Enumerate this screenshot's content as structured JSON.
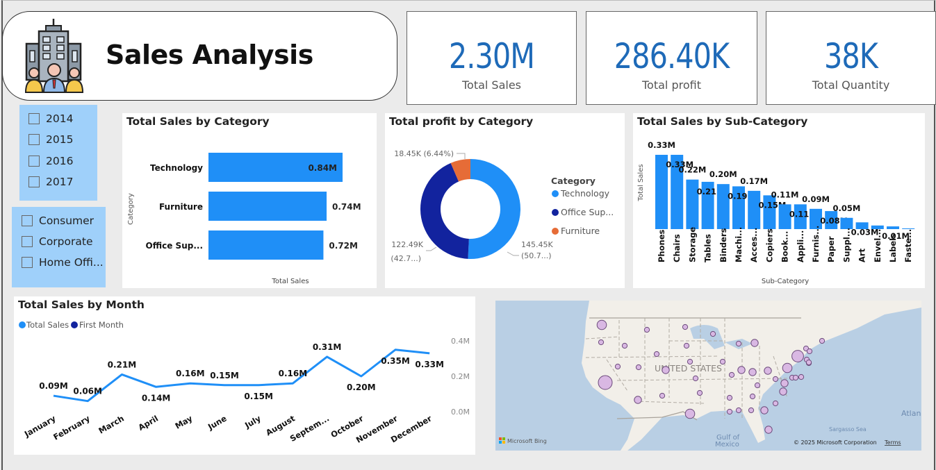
{
  "header": {
    "title": "Sales Analysis",
    "logo_icon": "office-building-team-icon"
  },
  "kpis": [
    {
      "value": "2.30M",
      "label": "Total Sales"
    },
    {
      "value": "286.40K",
      "label": "Total profit"
    },
    {
      "value": "38K",
      "label": "Total Quantity"
    }
  ],
  "slicers": {
    "year": {
      "options": [
        "2014",
        "2015",
        "2016",
        "2017"
      ],
      "checked": [
        false,
        false,
        false,
        false
      ]
    },
    "segment": {
      "options": [
        "Consumer",
        "Corporate",
        "Home Offi..."
      ],
      "checked": [
        false,
        false,
        false
      ]
    }
  },
  "colors": {
    "primary": "#1f8ff7",
    "dark_blue": "#12239e",
    "orange": "#e66c37",
    "kpi_blue": "#1e6ab8",
    "slicer_bg": "#9fd0fa",
    "map_bubble": "#d9b8e3"
  },
  "chart_data": [
    {
      "id": "sales_by_category",
      "type": "bar",
      "orientation": "horizontal",
      "title": "Total Sales by Category",
      "xlabel": "Total Sales",
      "ylabel": "Category",
      "categories": [
        "Technology",
        "Furniture",
        "Office Sup..."
      ],
      "values": [
        0.84,
        0.74,
        0.72
      ],
      "data_labels": [
        "0.84M",
        "0.74M",
        "0.72M"
      ],
      "unit": "M",
      "xlim": [
        0,
        0.84
      ]
    },
    {
      "id": "profit_by_category",
      "type": "pie",
      "donut": true,
      "title": "Total profit by Category",
      "legend_title": "Category",
      "legend_position": "right",
      "legend": [
        "Technology",
        "Office Sup...",
        "Furniture"
      ],
      "slices": [
        {
          "name": "Technology",
          "value": 145.45,
          "label": "145.45K",
          "pct_label": "(50.7...)",
          "percent": 50.79
        },
        {
          "name": "Office Supplies",
          "value": 122.49,
          "label": "122.49K",
          "pct_label": "(42.7...)",
          "percent": 42.77
        },
        {
          "name": "Furniture",
          "value": 18.45,
          "label": "18.45K (6.44%)",
          "pct_label": "",
          "percent": 6.44
        }
      ]
    },
    {
      "id": "sales_by_subcategory",
      "type": "bar",
      "orientation": "vertical",
      "title": "Total Sales by Sub-Category",
      "xlabel": "Sub-Category",
      "ylabel": "Total Sales",
      "categories": [
        "Phones",
        "Chairs",
        "Storage",
        "Tables",
        "Binders",
        "Machi...",
        "Acces...",
        "Copiers",
        "Book...",
        "Appli...",
        "Furnis...",
        "Paper",
        "Suppl...",
        "Art",
        "Envel...",
        "Labels",
        "Faste..."
      ],
      "values": [
        0.33,
        0.33,
        0.22,
        0.21,
        0.2,
        0.19,
        0.17,
        0.15,
        0.11,
        0.11,
        0.09,
        0.08,
        0.05,
        0.03,
        0.016,
        0.012,
        0.003
      ],
      "data_labels": [
        "0.33M",
        "0.33M",
        "0.22M",
        "0.21M",
        "0.20M",
        "0.19M",
        "0.17M",
        "0.15M",
        "0.11M",
        "0.11M",
        "0.09M",
        "0.08M",
        "0.05M",
        "0.03M",
        "",
        "0.01M",
        ""
      ],
      "unit": "M",
      "ylim": [
        0,
        0.33
      ]
    },
    {
      "id": "sales_by_month",
      "type": "line",
      "title": "Total Sales by Month",
      "legend": [
        "Total Sales",
        "First Month"
      ],
      "legend_position": "top-left",
      "x": [
        "January",
        "February",
        "March",
        "April",
        "May",
        "June",
        "July",
        "August",
        "Septem...",
        "October",
        "November",
        "December"
      ],
      "series": [
        {
          "name": "Total Sales",
          "values": [
            0.09,
            0.06,
            0.21,
            0.14,
            0.16,
            0.15,
            0.15,
            0.16,
            0.31,
            0.2,
            0.35,
            0.33
          ],
          "data_labels": [
            "0.09M",
            "0.06M",
            "0.21M",
            "0.14M",
            "0.16M",
            "0.15M",
            "0.15M",
            "0.16M",
            "0.31M",
            "0.20M",
            "0.35M",
            "0.33M"
          ]
        }
      ],
      "y_ticks": [
        "0.4M",
        "0.2M",
        "0.0M"
      ],
      "ylim": [
        0,
        0.4
      ],
      "y_axis_position": "right"
    }
  ],
  "map": {
    "country_label": "UNITED STATES",
    "labels": [
      "Gulf of",
      "Mexico",
      "Sargasso Sea",
      "Atlan"
    ],
    "bing_label": "Microsoft Bing",
    "copyright": "© 2025 Microsoft Corporation",
    "terms_link": "Terms",
    "bubbles": [
      {
        "state": "Washington",
        "size": 3
      },
      {
        "state": "Oregon",
        "size": 1
      },
      {
        "state": "California",
        "size": 5
      },
      {
        "state": "Nevada",
        "size": 1
      },
      {
        "state": "Idaho",
        "size": 1
      },
      {
        "state": "Montana",
        "size": 1
      },
      {
        "state": "Utah",
        "size": 1
      },
      {
        "state": "Arizona",
        "size": 2
      },
      {
        "state": "Colorado",
        "size": 2
      },
      {
        "state": "New Mexico",
        "size": 1
      },
      {
        "state": "Wyoming",
        "size": 1
      },
      {
        "state": "North Dakota",
        "size": 1
      },
      {
        "state": "South Dakota",
        "size": 1
      },
      {
        "state": "Nebraska",
        "size": 1
      },
      {
        "state": "Kansas",
        "size": 1
      },
      {
        "state": "Oklahoma",
        "size": 1
      },
      {
        "state": "Texas",
        "size": 3
      },
      {
        "state": "Minnesota",
        "size": 1
      },
      {
        "state": "Iowa",
        "size": 1
      },
      {
        "state": "Missouri",
        "size": 1
      },
      {
        "state": "Arkansas",
        "size": 1
      },
      {
        "state": "Louisiana",
        "size": 1
      },
      {
        "state": "Wisconsin",
        "size": 1
      },
      {
        "state": "Michigan",
        "size": 2
      },
      {
        "state": "Illinois",
        "size": 2
      },
      {
        "state": "Indiana",
        "size": 2
      },
      {
        "state": "Ohio",
        "size": 2
      },
      {
        "state": "Kentucky",
        "size": 1
      },
      {
        "state": "Tennessee",
        "size": 1
      },
      {
        "state": "Mississippi",
        "size": 1
      },
      {
        "state": "Alabama",
        "size": 1
      },
      {
        "state": "Georgia",
        "size": 2
      },
      {
        "state": "Florida",
        "size": 2
      },
      {
        "state": "South Carolina",
        "size": 1
      },
      {
        "state": "North Carolina",
        "size": 2
      },
      {
        "state": "Virginia",
        "size": 2
      },
      {
        "state": "Pennsylvania",
        "size": 3
      },
      {
        "state": "New York",
        "size": 4
      },
      {
        "state": "New Jersey",
        "size": 1
      },
      {
        "state": "Maryland",
        "size": 1
      },
      {
        "state": "Delaware",
        "size": 1
      },
      {
        "state": "Massachusetts",
        "size": 1
      },
      {
        "state": "Connecticut",
        "size": 1
      },
      {
        "state": "Rhode Island",
        "size": 1
      },
      {
        "state": "Vermont",
        "size": 1
      },
      {
        "state": "New Hampshire",
        "size": 1
      },
      {
        "state": "Maine",
        "size": 1
      },
      {
        "state": "West Virginia",
        "size": 1
      }
    ]
  }
}
